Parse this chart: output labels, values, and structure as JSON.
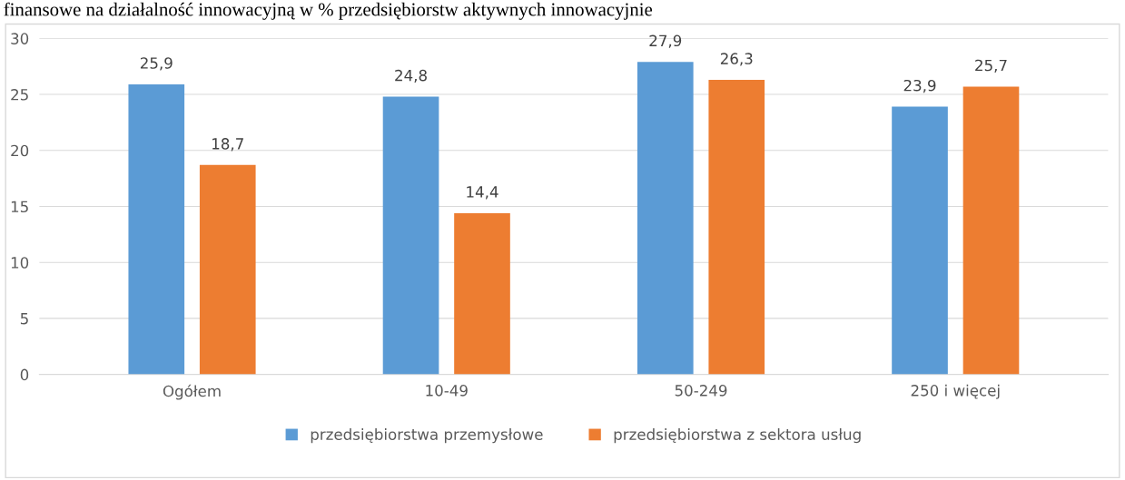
{
  "chart_data": {
    "type": "bar",
    "title": "finansowe na działalność innowacyjną w % przedsiębiorstw aktywnych innowacyjnie",
    "categories": [
      "Ogółem",
      "10-49",
      "50-249",
      "250 i więcej"
    ],
    "series": [
      {
        "name": "przedsiębiorstwa przemysłowe",
        "color": "#5b9bd5",
        "values": [
          25.9,
          24.8,
          27.9,
          23.9
        ],
        "value_labels": [
          "25,9",
          "24,8",
          "27,9",
          "23,9"
        ]
      },
      {
        "name": "przedsiębiorstwa z sektora usług",
        "color": "#ed7d31",
        "values": [
          18.7,
          14.4,
          26.3,
          25.7
        ],
        "value_labels": [
          "18,7",
          "14,4",
          "26,3",
          "25,7"
        ]
      }
    ],
    "ylim": [
      0,
      30
    ],
    "yticks": [
      0,
      5,
      10,
      15,
      20,
      25,
      30
    ],
    "grid": "y",
    "legend": "bottom"
  }
}
